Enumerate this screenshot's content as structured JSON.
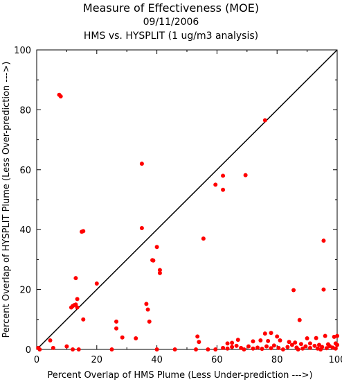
{
  "chart_data": {
    "type": "scatter",
    "title": "Measure of Effectiveness (MOE)",
    "subtitle_date": "09/11/2006",
    "subtitle_comparison": "HMS vs. HYSPLIT  (1 ug/m3 analysis)",
    "xlabel": "Percent Overlap of HMS Plume (Less Under-prediction --->)",
    "ylabel": "Percent Overlap of HYSPLIT Plume (Less Over-prediction --->)",
    "xlim": [
      0,
      100
    ],
    "ylim": [
      0,
      100
    ],
    "xticks": [
      "0",
      "20",
      "40",
      "60",
      "80",
      "100"
    ],
    "yticks": [
      "0",
      "20",
      "40",
      "60",
      "80",
      "100"
    ],
    "grid": false,
    "reference_line": "y = x",
    "colors": {
      "points": "#ff0000",
      "axes": "#000000",
      "reference_line": "#000000"
    },
    "series": [
      {
        "values": [
          [
            7.5,
            85.0
          ],
          [
            8.0,
            84.5
          ],
          [
            76.0,
            76.5
          ],
          [
            35.0,
            62.0
          ],
          [
            62.0,
            58.0
          ],
          [
            69.5,
            58.2
          ],
          [
            59.5,
            55.0
          ],
          [
            62.0,
            53.3
          ],
          [
            35.0,
            40.5
          ],
          [
            15.0,
            39.3
          ],
          [
            15.5,
            39.5
          ],
          [
            55.5,
            37.0
          ],
          [
            95.5,
            36.3
          ],
          [
            40.0,
            34.2
          ],
          [
            38.5,
            29.8
          ],
          [
            38.8,
            29.7
          ],
          [
            41.0,
            26.5
          ],
          [
            41.0,
            25.5
          ],
          [
            13.0,
            23.8
          ],
          [
            20.0,
            22.0
          ],
          [
            85.5,
            19.8
          ],
          [
            95.5,
            20.0
          ],
          [
            13.5,
            16.8
          ],
          [
            36.5,
            15.2
          ],
          [
            12.0,
            14.5
          ],
          [
            12.5,
            14.8
          ],
          [
            13.0,
            15.0
          ],
          [
            11.5,
            14.0
          ],
          [
            13.5,
            14.0
          ],
          [
            37.0,
            13.3
          ],
          [
            15.5,
            10.0
          ],
          [
            37.5,
            9.3
          ],
          [
            26.5,
            9.3
          ],
          [
            87.5,
            9.8
          ],
          [
            26.5,
            7.0
          ],
          [
            78.0,
            5.5
          ],
          [
            76.0,
            5.3
          ],
          [
            80.0,
            4.3
          ],
          [
            93.0,
            3.8
          ],
          [
            96.0,
            4.5
          ],
          [
            100.0,
            4.5
          ],
          [
            99.0,
            4.2
          ],
          [
            28.5,
            4.0
          ],
          [
            33.0,
            3.7
          ],
          [
            53.5,
            4.3
          ],
          [
            90.0,
            3.7
          ],
          [
            54.0,
            2.5
          ],
          [
            63.5,
            2.0
          ],
          [
            65.0,
            2.2
          ],
          [
            4.5,
            3.0
          ],
          [
            67.0,
            3.2
          ],
          [
            72.0,
            2.7
          ],
          [
            74.5,
            3.0
          ],
          [
            77.0,
            2.8
          ],
          [
            81.0,
            3.0
          ],
          [
            84.0,
            2.5
          ],
          [
            86.0,
            2.3
          ],
          [
            88.0,
            1.8
          ],
          [
            91.0,
            2.0
          ],
          [
            94.0,
            1.5
          ],
          [
            97.0,
            1.7
          ],
          [
            99.5,
            2.0
          ],
          [
            0.5,
            0.5
          ],
          [
            1.0,
            0.0
          ],
          [
            5.5,
            0.5
          ],
          [
            10.0,
            1.0
          ],
          [
            12.0,
            0.0
          ],
          [
            14.0,
            0.0
          ],
          [
            25.0,
            0.0
          ],
          [
            40.0,
            0.0
          ],
          [
            46.0,
            0.0
          ],
          [
            53.0,
            0.0
          ],
          [
            57.0,
            0.0
          ],
          [
            59.5,
            0.0
          ],
          [
            62.0,
            0.5
          ],
          [
            63.5,
            0.3
          ],
          [
            65.0,
            0.8
          ],
          [
            66.5,
            1.2
          ],
          [
            68.0,
            0.5
          ],
          [
            69.0,
            0.0
          ],
          [
            70.5,
            1.0
          ],
          [
            72.0,
            0.3
          ],
          [
            73.5,
            0.6
          ],
          [
            75.0,
            0.2
          ],
          [
            76.5,
            1.0
          ],
          [
            78.0,
            0.4
          ],
          [
            79.0,
            1.3
          ],
          [
            80.5,
            0.5
          ],
          [
            82.0,
            0.0
          ],
          [
            83.5,
            0.8
          ],
          [
            85.0,
            1.5
          ],
          [
            86.5,
            0.6
          ],
          [
            88.5,
            0.3
          ],
          [
            89.5,
            1.0
          ],
          [
            91.0,
            0.5
          ],
          [
            92.5,
            1.2
          ],
          [
            93.5,
            0.3
          ],
          [
            95.0,
            0.8
          ],
          [
            96.5,
            0.4
          ],
          [
            97.5,
            1.1
          ],
          [
            98.5,
            0.6
          ],
          [
            99.5,
            0.3
          ],
          [
            100.0,
            1.5
          ],
          [
            87.0,
            0.0
          ],
          [
            94.5,
            0.0
          ]
        ]
      }
    ]
  }
}
